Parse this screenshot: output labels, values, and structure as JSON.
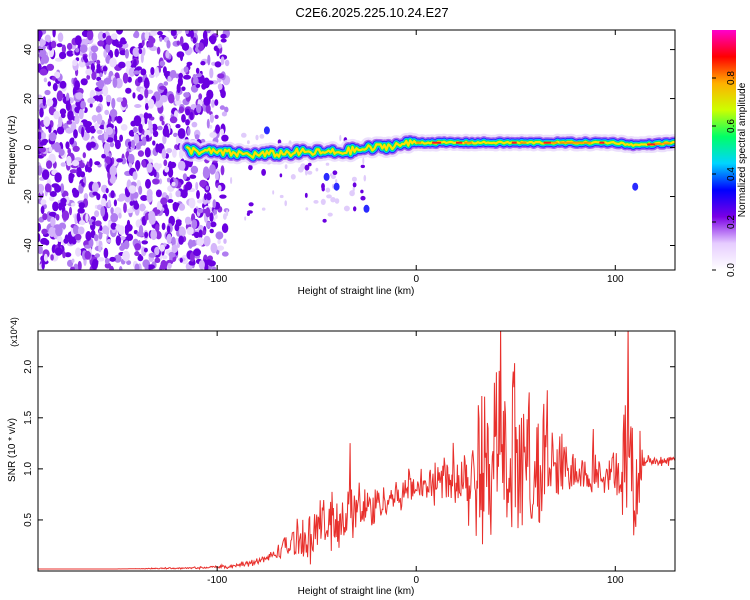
{
  "title": "C2E6.2025.225.10.24.E27",
  "chart_data": [
    {
      "type": "heatmap",
      "xlabel": "Height of straight line (km)",
      "ylabel": "Frequency (Hz)",
      "xlim": [
        -190,
        130
      ],
      "ylim": [
        -50,
        48
      ],
      "x_ticks": [
        -100,
        0,
        100
      ],
      "y_ticks": [
        -40,
        -20,
        0,
        20,
        40
      ],
      "colorbar": {
        "label": "Normalized spectral amplitude",
        "range": [
          0,
          1
        ],
        "ticks": [
          "0.0",
          "0.2",
          "0.4",
          "0.6",
          "0.8"
        ],
        "colors": [
          "#ffffff",
          "#e6ccff",
          "#7a00e6",
          "#0000ff",
          "#00d5ff",
          "#00ff66",
          "#ccff00",
          "#ffb000",
          "#ff0000",
          "#ff00cc"
        ]
      },
      "ridge": {
        "x": [
          -115,
          -100,
          -80,
          -60,
          -40,
          -20,
          0,
          20,
          40,
          60,
          80,
          100,
          110,
          130
        ],
        "frequency": [
          -1,
          -2,
          -3,
          -2,
          -2,
          0,
          2,
          2,
          2,
          2,
          2,
          2,
          1,
          2
        ]
      }
    },
    {
      "type": "line",
      "xlabel": "Height of straight line (km)",
      "ylabel": "SNR (10 * v/v)",
      "y_multiplier": "(x10^4)",
      "xlim": [
        -190,
        130
      ],
      "ylim": [
        0,
        2.35
      ],
      "x_ticks": [
        -100,
        0,
        100
      ],
      "y_ticks": [
        "0.5",
        "1.0",
        "1.5",
        "2.0"
      ],
      "series": [
        {
          "color": "#e8302c",
          "x": [
            -190,
            -150,
            -110,
            -90,
            -75,
            -65,
            -55,
            -45,
            -35,
            -25,
            -15,
            -5,
            0,
            10,
            20,
            30,
            40,
            50,
            60,
            70,
            80,
            90,
            100,
            105,
            110,
            115,
            130
          ],
          "baseline": [
            0.02,
            0.02,
            0.03,
            0.05,
            0.12,
            0.25,
            0.35,
            0.45,
            0.55,
            0.62,
            0.7,
            0.78,
            0.82,
            0.88,
            0.95,
            1.0,
            1.05,
            1.0,
            1.05,
            1.0,
            1.0,
            0.95,
            0.95,
            1.0,
            0.9,
            1.08,
            1.08
          ],
          "spread": [
            0.0,
            0.0,
            0.01,
            0.02,
            0.05,
            0.15,
            0.25,
            0.3,
            0.28,
            0.25,
            0.2,
            0.18,
            0.15,
            0.2,
            0.35,
            0.6,
            0.8,
            0.85,
            0.8,
            0.55,
            0.25,
            0.2,
            0.25,
            0.6,
            0.8,
            0.05,
            0.04
          ]
        }
      ]
    }
  ]
}
